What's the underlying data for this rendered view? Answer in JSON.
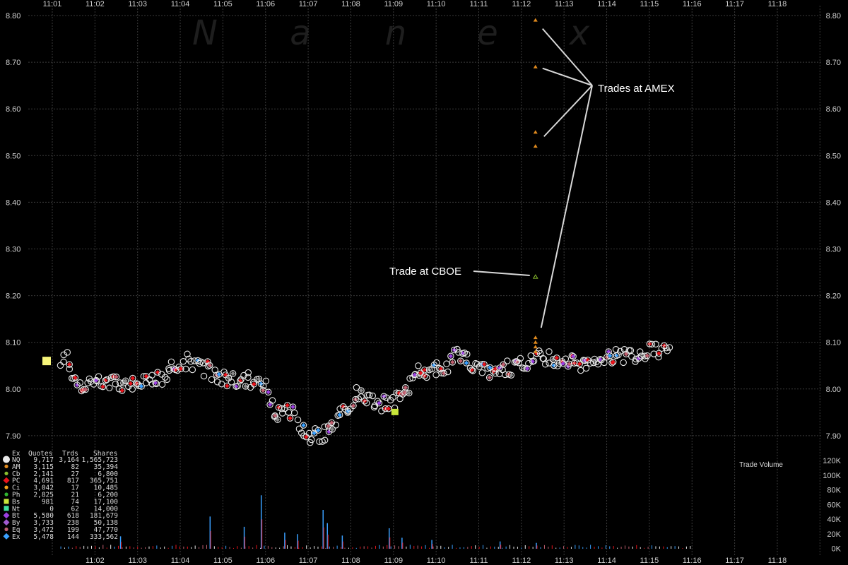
{
  "chart_data": {
    "type": "scatter",
    "watermark": [
      "N",
      "a",
      "n",
      "e",
      "x"
    ],
    "top_times": [
      "11:01",
      "11:02",
      "11:03",
      "11:04",
      "11:05",
      "11:06",
      "11:07",
      "11:08",
      "11:09",
      "11:10",
      "11:11",
      "11:12",
      "11:13",
      "11:14",
      "11:15",
      "11:16",
      "11:17",
      "11:18"
    ],
    "bottom_times": [
      "11:02",
      "11:03",
      "11:04",
      "11:05",
      "11:06",
      "11:07",
      "11:08",
      "11:09",
      "11:10",
      "11:11",
      "11:12",
      "11:13",
      "11:14",
      "11:15",
      "11:16",
      "11:17",
      "11:18"
    ],
    "price_ticks": [
      "8.80",
      "8.70",
      "8.60",
      "8.50",
      "8.40",
      "8.30",
      "8.20",
      "8.10",
      "8.00",
      "7.90"
    ],
    "price_range": [
      7.88,
      8.81
    ],
    "volume_ticks": [
      "120K",
      "100K",
      "80K",
      "60K",
      "40K",
      "20K",
      "0K"
    ],
    "volume_label": "Trade Volume",
    "time_range_minutes": [
      0,
      18
    ],
    "grid": true,
    "annotations": [
      {
        "text": "Trades at AMEX"
      },
      {
        "text": "Trade at CBOE"
      }
    ],
    "price_series": [
      {
        "t": 0.1,
        "p": 8.06
      },
      {
        "t": 0.3,
        "p": 8.07
      },
      {
        "t": 0.5,
        "p": 8.02
      },
      {
        "t": 0.7,
        "p": 8.01
      },
      {
        "t": 1.0,
        "p": 8.02
      },
      {
        "t": 1.3,
        "p": 8.02
      },
      {
        "t": 1.6,
        "p": 8.01
      },
      {
        "t": 2.0,
        "p": 8.02
      },
      {
        "t": 2.3,
        "p": 8.02
      },
      {
        "t": 2.6,
        "p": 8.02
      },
      {
        "t": 2.9,
        "p": 8.05
      },
      {
        "t": 3.2,
        "p": 8.06
      },
      {
        "t": 3.5,
        "p": 8.05
      },
      {
        "t": 3.8,
        "p": 8.03
      },
      {
        "t": 4.1,
        "p": 8.02
      },
      {
        "t": 4.4,
        "p": 8.02
      },
      {
        "t": 4.7,
        "p": 8.02
      },
      {
        "t": 4.9,
        "p": 8.01
      },
      {
        "t": 5.05,
        "p": 8.0
      },
      {
        "t": 5.15,
        "p": 7.96
      },
      {
        "t": 5.3,
        "p": 7.95
      },
      {
        "t": 5.5,
        "p": 7.96
      },
      {
        "t": 5.7,
        "p": 7.94
      },
      {
        "t": 5.9,
        "p": 7.91
      },
      {
        "t": 6.1,
        "p": 7.9
      },
      {
        "t": 6.3,
        "p": 7.9
      },
      {
        "t": 6.5,
        "p": 7.91
      },
      {
        "t": 6.7,
        "p": 7.93
      },
      {
        "t": 6.9,
        "p": 7.96
      },
      {
        "t": 7.1,
        "p": 7.99
      },
      {
        "t": 7.4,
        "p": 7.98
      },
      {
        "t": 7.7,
        "p": 7.97
      },
      {
        "t": 7.95,
        "p": 7.97
      },
      {
        "t": 8.2,
        "p": 7.98
      },
      {
        "t": 8.35,
        "p": 8.0
      },
      {
        "t": 8.5,
        "p": 8.05
      },
      {
        "t": 8.7,
        "p": 8.04
      },
      {
        "t": 9.0,
        "p": 8.04
      },
      {
        "t": 9.3,
        "p": 8.05
      },
      {
        "t": 9.5,
        "p": 8.08
      },
      {
        "t": 9.7,
        "p": 8.07
      },
      {
        "t": 9.9,
        "p": 8.05
      },
      {
        "t": 10.2,
        "p": 8.04
      },
      {
        "t": 10.5,
        "p": 8.05
      },
      {
        "t": 10.8,
        "p": 8.04
      },
      {
        "t": 11.1,
        "p": 8.06
      },
      {
        "t": 11.4,
        "p": 8.07
      },
      {
        "t": 11.7,
        "p": 8.07
      },
      {
        "t": 12.0,
        "p": 8.06
      },
      {
        "t": 12.3,
        "p": 8.05
      },
      {
        "t": 12.6,
        "p": 8.06
      },
      {
        "t": 12.9,
        "p": 8.07
      },
      {
        "t": 13.2,
        "p": 8.07
      },
      {
        "t": 13.5,
        "p": 8.07
      },
      {
        "t": 13.8,
        "p": 8.08
      },
      {
        "t": 14.1,
        "p": 8.08
      },
      {
        "t": 14.4,
        "p": 8.08
      }
    ],
    "amex_trades": [
      {
        "t": 11.33,
        "p": 8.79
      },
      {
        "t": 11.33,
        "p": 8.69
      },
      {
        "t": 11.33,
        "p": 8.55
      },
      {
        "t": 11.33,
        "p": 8.52
      },
      {
        "t": 11.33,
        "p": 8.11
      },
      {
        "t": 11.33,
        "p": 8.1
      },
      {
        "t": 11.33,
        "p": 8.09
      },
      {
        "t": 11.33,
        "p": 8.08
      }
    ],
    "cboe_trades": [
      {
        "t": 11.33,
        "p": 8.24
      }
    ],
    "volume_spikes_k": [
      {
        "t": 1.6,
        "v": 17
      },
      {
        "t": 3.7,
        "v": 44
      },
      {
        "t": 4.5,
        "v": 30
      },
      {
        "t": 4.9,
        "v": 73
      },
      {
        "t": 5.45,
        "v": 22
      },
      {
        "t": 5.75,
        "v": 20
      },
      {
        "t": 6.35,
        "v": 53
      },
      {
        "t": 6.45,
        "v": 35
      },
      {
        "t": 6.8,
        "v": 18
      },
      {
        "t": 7.9,
        "v": 28
      },
      {
        "t": 8.2,
        "v": 15
      },
      {
        "t": 8.9,
        "v": 12
      },
      {
        "t": 10.5,
        "v": 10
      },
      {
        "t": 11.35,
        "v": 8
      }
    ],
    "legend": {
      "header": [
        "Ex",
        "Quotes",
        "Trds",
        "Shares"
      ],
      "rows": [
        {
          "ex": "NQ",
          "quotes": "9,717",
          "trds": "3,164",
          "shares": "1,565,723",
          "color": "#e8e8e8",
          "shape": "circle"
        },
        {
          "ex": "AM",
          "quotes": "3,115",
          "trds": "82",
          "shares": "35,394",
          "color": "#e08a1e",
          "shape": "dot"
        },
        {
          "ex": "Cb",
          "quotes": "2,141",
          "trds": "27",
          "shares": "6,800",
          "color": "#8bbf2e",
          "shape": "dot"
        },
        {
          "ex": "PC",
          "quotes": "4,691",
          "trds": "817",
          "shares": "365,751",
          "color": "#e8131b",
          "shape": "diamond"
        },
        {
          "ex": "Ci",
          "quotes": "3,042",
          "trds": "17",
          "shares": "10,485",
          "color": "#f2a31c",
          "shape": "dot"
        },
        {
          "ex": "Ph",
          "quotes": "2,825",
          "trds": "21",
          "shares": "6,200",
          "color": "#2fb52f",
          "shape": "dot"
        },
        {
          "ex": "Bs",
          "quotes": "981",
          "trds": "74",
          "shares": "17,100",
          "color": "#c8e63a",
          "shape": "square"
        },
        {
          "ex": "Nt",
          "quotes": "0",
          "trds": "62",
          "shares": "14,000",
          "color": "#3fe0a0",
          "shape": "square"
        },
        {
          "ex": "Bt",
          "quotes": "5,580",
          "trds": "618",
          "shares": "181,679",
          "color": "#9b3fe0",
          "shape": "diamond"
        },
        {
          "ex": "By",
          "quotes": "3,733",
          "trds": "238",
          "shares": "50,138",
          "color": "#a05ad0",
          "shape": "diamond"
        },
        {
          "ex": "Eq",
          "quotes": "3,472",
          "trds": "199",
          "shares": "47,770",
          "color": "#c06070",
          "shape": "dot"
        },
        {
          "ex": "Ex",
          "quotes": "5,478",
          "trds": "144",
          "shares": "333,562",
          "color": "#3aa0ff",
          "shape": "diamond"
        }
      ]
    }
  }
}
